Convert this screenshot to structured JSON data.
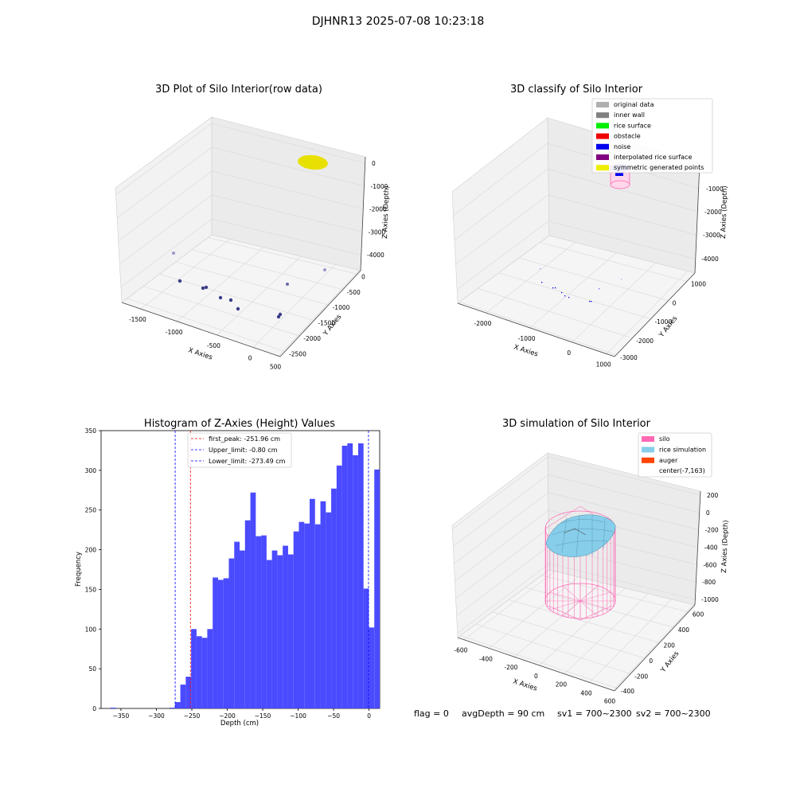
{
  "suptitle": "DJHNR13 2025-07-08 10:23:18",
  "footer": {
    "flag": "flag = 0",
    "avg_depth": "avgDepth = 90 cm",
    "sv1": "sv1 = 700~2300",
    "sv2": "sv2 = 700~2300"
  },
  "chart_data": [
    {
      "type": "scatter",
      "title": "3D Plot of Silo Interior(row data)",
      "xlabel": "X Axies",
      "ylabel": "Y Axies",
      "zlabel": "Z Axies (Depth)",
      "x_ticks": [
        "-1500",
        "-1000",
        "-500",
        "0",
        "500"
      ],
      "y_ticks": [
        "0",
        "-500",
        "-1000",
        "-1500",
        "-2000",
        "-2500"
      ],
      "z_ticks": [
        "0",
        "-1000",
        "-2000",
        "-3000",
        "-4000"
      ],
      "cluster_color": "#e8e000",
      "point_color": "#3d3d8a"
    },
    {
      "type": "scatter",
      "title": "3D classify of Silo Interior",
      "xlabel": "X Axies",
      "ylabel": "Y Axies",
      "zlabel": "Z Axies (Depth)",
      "x_ticks": [
        "-2000",
        "-1000",
        "0",
        "1000"
      ],
      "y_ticks": [
        "1000",
        "0",
        "-1000",
        "-2000",
        "-3000"
      ],
      "z_ticks": [
        "-1000",
        "-2000",
        "-3000",
        "-4000"
      ],
      "legend": [
        {
          "label": "original data",
          "color": "#b0b0b0"
        },
        {
          "label": "inner wall",
          "color": "#808080"
        },
        {
          "label": "rice surface",
          "color": "#00ee00"
        },
        {
          "label": "obstacle",
          "color": "#ee0000"
        },
        {
          "label": "noise",
          "color": "#0000ee"
        },
        {
          "label": "interpolated rice surface",
          "color": "#800080"
        },
        {
          "label": "symmetric generated points",
          "color": "#eeee00"
        }
      ]
    },
    {
      "type": "bar",
      "title": "Histogram of Z-Axies (Height) Values",
      "xlabel": "Depth (cm)",
      "ylabel": "Frequency",
      "xlim": [
        -378,
        15
      ],
      "ylim": [
        0,
        350
      ],
      "x_ticks": [
        -350,
        -300,
        -250,
        -200,
        -150,
        -100,
        -50,
        0
      ],
      "y_ticks": [
        0,
        50,
        100,
        150,
        200,
        250,
        300,
        350
      ],
      "bin_width": 7.6,
      "bins": [
        {
          "start": -365,
          "value": 1
        },
        {
          "start": -281.4,
          "value": 1
        },
        {
          "start": -273.8,
          "value": 8
        },
        {
          "start": -266.2,
          "value": 30
        },
        {
          "start": -258.6,
          "value": 40
        },
        {
          "start": -251.0,
          "value": 100
        },
        {
          "start": -243.4,
          "value": 91
        },
        {
          "start": -235.8,
          "value": 89
        },
        {
          "start": -228.2,
          "value": 100
        },
        {
          "start": -220.6,
          "value": 165
        },
        {
          "start": -213.0,
          "value": 162
        },
        {
          "start": -205.4,
          "value": 164
        },
        {
          "start": -197.8,
          "value": 189
        },
        {
          "start": -190.2,
          "value": 210
        },
        {
          "start": -182.6,
          "value": 199
        },
        {
          "start": -175.0,
          "value": 237
        },
        {
          "start": -167.4,
          "value": 272
        },
        {
          "start": -159.8,
          "value": 217
        },
        {
          "start": -152.2,
          "value": 218
        },
        {
          "start": -144.6,
          "value": 187
        },
        {
          "start": -137.0,
          "value": 199
        },
        {
          "start": -129.4,
          "value": 193
        },
        {
          "start": -121.8,
          "value": 205
        },
        {
          "start": -114.2,
          "value": 194
        },
        {
          "start": -106.6,
          "value": 223
        },
        {
          "start": -99.0,
          "value": 235
        },
        {
          "start": -91.4,
          "value": 233
        },
        {
          "start": -83.8,
          "value": 264
        },
        {
          "start": -76.2,
          "value": 232
        },
        {
          "start": -68.6,
          "value": 261
        },
        {
          "start": -61.0,
          "value": 247
        },
        {
          "start": -53.4,
          "value": 277
        },
        {
          "start": -45.8,
          "value": 306
        },
        {
          "start": -38.2,
          "value": 331
        },
        {
          "start": -30.6,
          "value": 334
        },
        {
          "start": -23.0,
          "value": 319
        },
        {
          "start": -15.4,
          "value": 334
        },
        {
          "start": -7.8,
          "value": 151
        },
        {
          "start": -0.2,
          "value": 102
        },
        {
          "start": 7.4,
          "value": 301
        }
      ],
      "bar_color": "#4a4aff",
      "lines": [
        {
          "label": "first_peak: -251.96 cm",
          "x": -251.96,
          "color": "#ff0000"
        },
        {
          "label": "Upper_limit: -0.80 cm",
          "x": -0.8,
          "color": "#0000ff"
        },
        {
          "label": "Lower_limit: -273.49 cm",
          "x": -273.49,
          "color": "#0000ff"
        }
      ]
    },
    {
      "type": "other",
      "title": "3D simulation of Silo Interior",
      "xlabel": "X Axies",
      "ylabel": "Y Axies",
      "zlabel": "Z Axies (Depth)",
      "x_ticks": [
        "-600",
        "-400",
        "-200",
        "0",
        "200",
        "400",
        "600"
      ],
      "y_ticks": [
        "600",
        "400",
        "200",
        "0",
        "-200",
        "-400"
      ],
      "z_ticks": [
        "200",
        "0",
        "-200",
        "-400",
        "-600",
        "-800",
        "-1000"
      ],
      "legend": [
        {
          "label": "silo",
          "color": "#ff69b4"
        },
        {
          "label": "rice simulation",
          "color": "#87ceeb"
        },
        {
          "label": "auger",
          "color": "#ff4500"
        },
        {
          "label": "center(-7,163)",
          "color": "#ffffff"
        }
      ]
    }
  ]
}
